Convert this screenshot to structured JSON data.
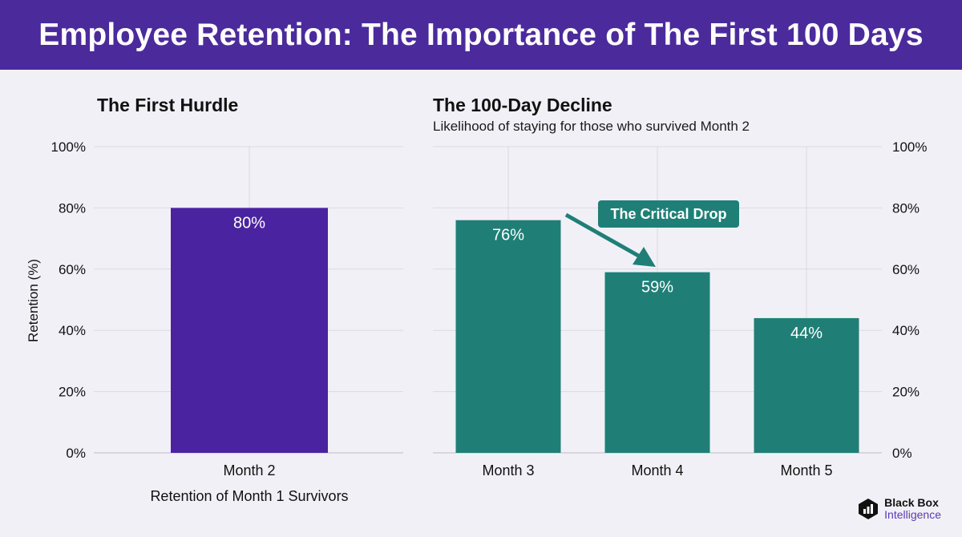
{
  "title": "Employee Retention: The Importance of The First 100 Days",
  "colors": {
    "banner": "#4b2a9c",
    "left_bar": "#4a23a0",
    "right_bar": "#1f7f77",
    "background": "#f2f0f7"
  },
  "y_axis_label": "Retention (%)",
  "callout": "The Critical Drop",
  "logo": {
    "line1": "Black Box",
    "line2": "Intelligence",
    "icon": "bar-chart-logo-icon"
  },
  "chart_data": [
    {
      "type": "bar",
      "title": "The First Hurdle",
      "subtitle": "",
      "categories": [
        "Month 2"
      ],
      "values": [
        80
      ],
      "data_labels": [
        "80%"
      ],
      "xlabel": "Retention of Month 1 Survivors",
      "ylabel": "Retention (%)",
      "ylim": [
        0,
        100
      ],
      "yticks": [
        "0%",
        "20%",
        "40%",
        "60%",
        "80%",
        "100%"
      ],
      "grid": true
    },
    {
      "type": "bar",
      "title": "The 100-Day Decline",
      "subtitle": "Likelihood of staying for those who survived Month 2",
      "categories": [
        "Month 3",
        "Month 4",
        "Month 5"
      ],
      "values": [
        76,
        59,
        44
      ],
      "data_labels": [
        "76%",
        "59%",
        "44%"
      ],
      "xlabel": "",
      "ylim": [
        0,
        100
      ],
      "yticks": [
        "0%",
        "20%",
        "40%",
        "60%",
        "80%",
        "100%"
      ],
      "grid": true,
      "annotation": "The Critical Drop"
    }
  ]
}
